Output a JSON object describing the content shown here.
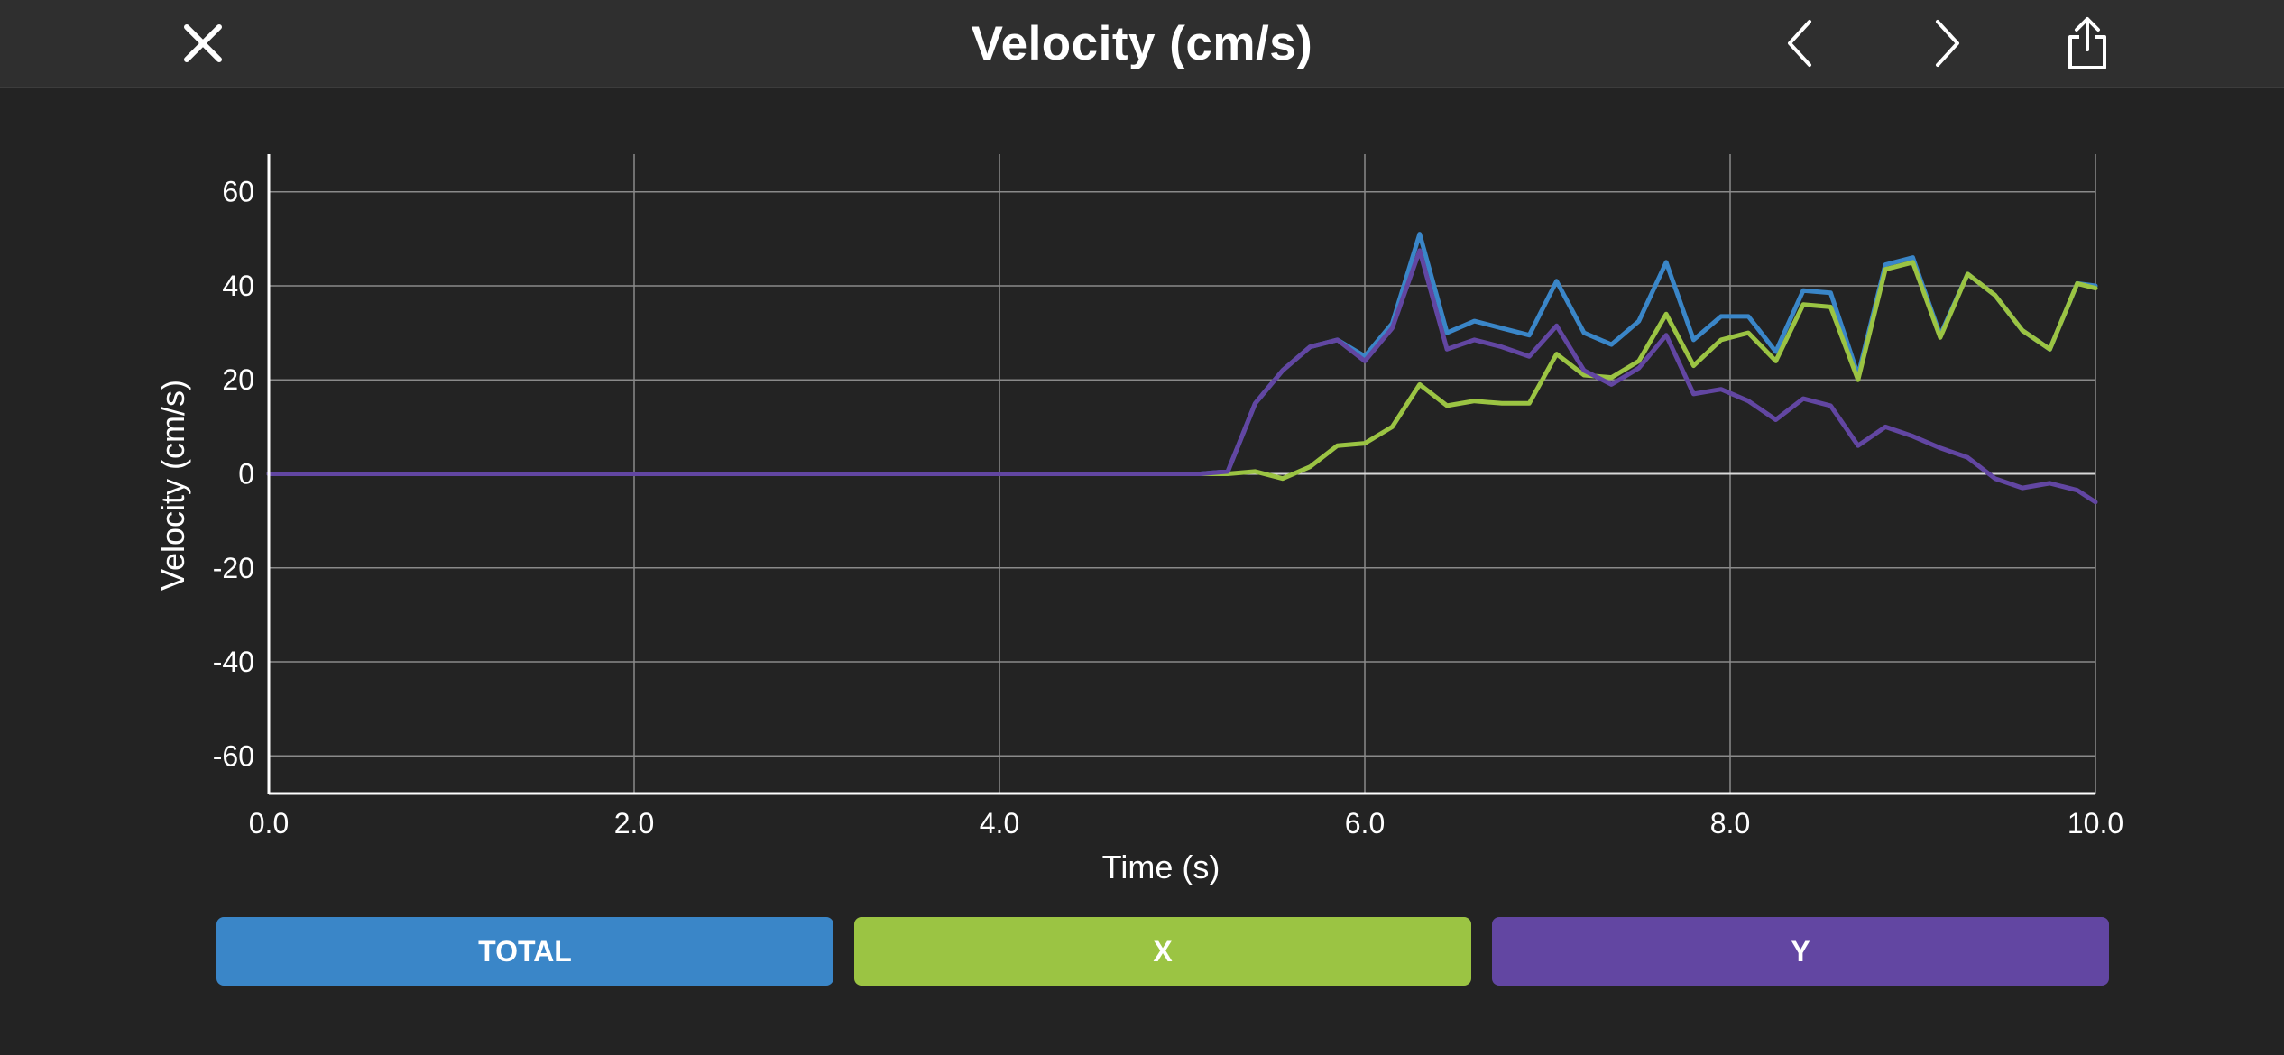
{
  "header": {
    "title": "Velocity (cm/s)",
    "close_icon": "close-icon",
    "prev_icon": "chevron-left-icon",
    "next_icon": "chevron-right-icon",
    "share_icon": "share-icon"
  },
  "colors": {
    "background": "#232323",
    "header": "#2f2f2f",
    "total": "#3a86c8",
    "x": "#9bc443",
    "y": "#6246a2",
    "grid": "#8a8a8a",
    "axis": "#ffffff"
  },
  "legend": [
    {
      "label": "TOTAL",
      "series": "total"
    },
    {
      "label": "X",
      "series": "x"
    },
    {
      "label": "Y",
      "series": "y"
    }
  ],
  "chart_data": {
    "type": "line",
    "title": "Velocity (cm/s)",
    "xlabel": "Time (s)",
    "ylabel": "Velocity (cm/s)",
    "xlim": [
      0,
      10
    ],
    "ylim": [
      -68,
      68
    ],
    "xticks": [
      "0.0",
      "2.0",
      "4.0",
      "6.0",
      "8.0",
      "10.0"
    ],
    "yticks": [
      "60",
      "40",
      "20",
      "0",
      "-20",
      "-40",
      "-60"
    ],
    "grid": true,
    "series": [
      {
        "name": "TOTAL",
        "key": "total",
        "color": "#3a86c8",
        "points": [
          [
            0,
            0
          ],
          [
            5.1,
            0
          ],
          [
            5.25,
            0.5
          ],
          [
            5.4,
            15
          ],
          [
            5.55,
            22
          ],
          [
            5.7,
            27
          ],
          [
            5.85,
            28.5
          ],
          [
            6.0,
            25
          ],
          [
            6.15,
            32
          ],
          [
            6.3,
            51
          ],
          [
            6.45,
            30
          ],
          [
            6.6,
            32.5
          ],
          [
            6.75,
            31
          ],
          [
            6.9,
            29.5
          ],
          [
            7.05,
            41
          ],
          [
            7.2,
            30
          ],
          [
            7.35,
            27.5
          ],
          [
            7.5,
            32.5
          ],
          [
            7.65,
            45
          ],
          [
            7.8,
            28.5
          ],
          [
            7.95,
            33.5
          ],
          [
            8.1,
            33.5
          ],
          [
            8.25,
            26
          ],
          [
            8.4,
            39
          ],
          [
            8.55,
            38.5
          ],
          [
            8.7,
            21
          ],
          [
            8.85,
            44.5
          ],
          [
            9.0,
            46
          ],
          [
            9.15,
            29.5
          ],
          [
            9.3,
            42.5
          ],
          [
            9.45,
            38
          ],
          [
            9.6,
            30.5
          ],
          [
            9.75,
            26.5
          ],
          [
            9.9,
            40.5
          ],
          [
            10.0,
            40
          ]
        ]
      },
      {
        "name": "X",
        "key": "x",
        "color": "#9bc443",
        "points": [
          [
            0,
            0
          ],
          [
            5.25,
            0
          ],
          [
            5.4,
            0.5
          ],
          [
            5.55,
            -1
          ],
          [
            5.7,
            1.5
          ],
          [
            5.85,
            6
          ],
          [
            6.0,
            6.5
          ],
          [
            6.15,
            10
          ],
          [
            6.3,
            19
          ],
          [
            6.45,
            14.5
          ],
          [
            6.6,
            15.5
          ],
          [
            6.75,
            15
          ],
          [
            6.9,
            15
          ],
          [
            7.05,
            25.5
          ],
          [
            7.2,
            21
          ],
          [
            7.35,
            20.5
          ],
          [
            7.5,
            24
          ],
          [
            7.65,
            34
          ],
          [
            7.8,
            23
          ],
          [
            7.95,
            28.5
          ],
          [
            8.1,
            30
          ],
          [
            8.25,
            24
          ],
          [
            8.4,
            36
          ],
          [
            8.55,
            35.5
          ],
          [
            8.7,
            20
          ],
          [
            8.85,
            43.5
          ],
          [
            9.0,
            45
          ],
          [
            9.15,
            29
          ],
          [
            9.3,
            42.5
          ],
          [
            9.45,
            38
          ],
          [
            9.6,
            30.5
          ],
          [
            9.75,
            26.5
          ],
          [
            9.9,
            40.5
          ],
          [
            10.0,
            39.5
          ]
        ]
      },
      {
        "name": "Y",
        "key": "y",
        "color": "#6246a2",
        "points": [
          [
            0,
            0
          ],
          [
            5.1,
            0
          ],
          [
            5.25,
            0.5
          ],
          [
            5.4,
            15
          ],
          [
            5.55,
            22
          ],
          [
            5.7,
            27
          ],
          [
            5.85,
            28.5
          ],
          [
            6.0,
            24
          ],
          [
            6.15,
            31
          ],
          [
            6.3,
            47.5
          ],
          [
            6.45,
            26.5
          ],
          [
            6.6,
            28.5
          ],
          [
            6.75,
            27
          ],
          [
            6.9,
            25
          ],
          [
            7.05,
            31.5
          ],
          [
            7.2,
            22
          ],
          [
            7.35,
            19
          ],
          [
            7.5,
            22.5
          ],
          [
            7.65,
            29.5
          ],
          [
            7.8,
            17
          ],
          [
            7.95,
            18
          ],
          [
            8.1,
            15.5
          ],
          [
            8.25,
            11.5
          ],
          [
            8.4,
            16
          ],
          [
            8.55,
            14.5
          ],
          [
            8.7,
            6
          ],
          [
            8.85,
            10
          ],
          [
            9.0,
            8
          ],
          [
            9.15,
            5.5
          ],
          [
            9.3,
            3.5
          ],
          [
            9.45,
            -1
          ],
          [
            9.6,
            -3
          ],
          [
            9.75,
            -2
          ],
          [
            9.9,
            -3.5
          ],
          [
            10.0,
            -6
          ]
        ]
      }
    ]
  }
}
